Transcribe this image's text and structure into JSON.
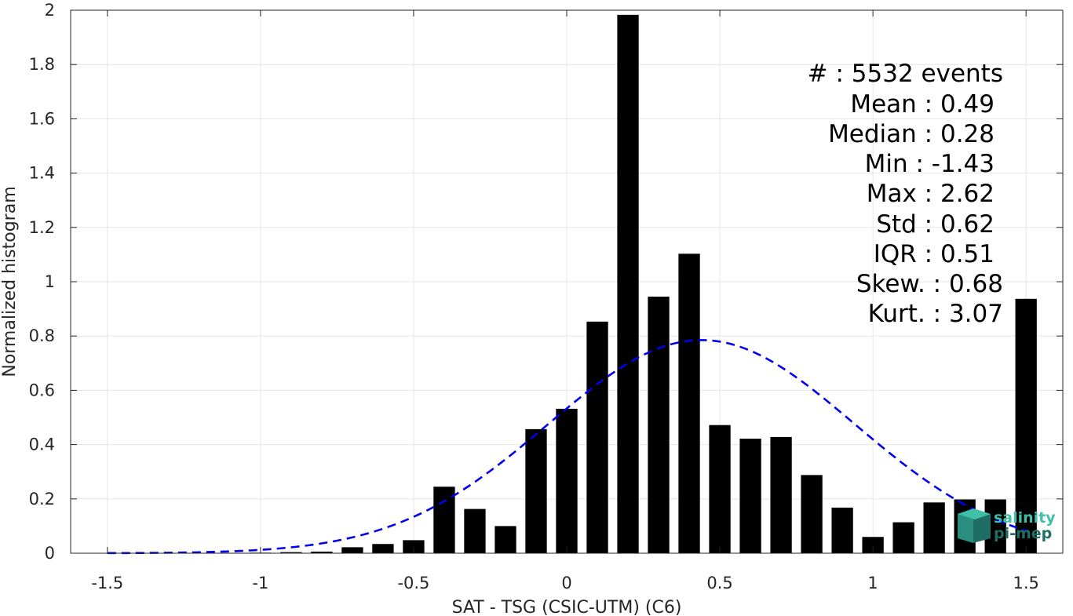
{
  "chart_data": {
    "type": "bar",
    "xlabel": "SAT - TSG (CSIC-UTM) (C6)",
    "ylabel": "Normalized histogram",
    "xlim": [
      -1.62,
      1.62
    ],
    "ylim": [
      0,
      2
    ],
    "x_ticks": [
      -1.5,
      -1,
      -0.5,
      0,
      0.5,
      1,
      1.5
    ],
    "y_ticks": [
      0,
      0.2,
      0.4,
      0.6,
      0.8,
      1,
      1.2,
      1.4,
      1.6,
      1.8,
      2
    ],
    "x_tick_labels": [
      "-1.5",
      "-1",
      "-0.5",
      "0",
      "0.5",
      "1",
      "1.5"
    ],
    "y_tick_labels": [
      "0",
      "0.2",
      "0.4",
      "0.6",
      "0.8",
      "1",
      "1.2",
      "1.4",
      "1.6",
      "1.8",
      "2"
    ],
    "grid": true,
    "bar_color": "#000000",
    "bar_width": 0.07,
    "bars": [
      {
        "x": -1.5,
        "y": 0.0
      },
      {
        "x": -1.4,
        "y": 0.0
      },
      {
        "x": -1.3,
        "y": 0.0
      },
      {
        "x": -1.2,
        "y": 0.0
      },
      {
        "x": -1.1,
        "y": 0.0
      },
      {
        "x": -1.0,
        "y": 0.002
      },
      {
        "x": -0.9,
        "y": 0.004
      },
      {
        "x": -0.8,
        "y": 0.006
      },
      {
        "x": -0.7,
        "y": 0.022
      },
      {
        "x": -0.6,
        "y": 0.034
      },
      {
        "x": -0.5,
        "y": 0.048
      },
      {
        "x": -0.4,
        "y": 0.245
      },
      {
        "x": -0.3,
        "y": 0.163
      },
      {
        "x": -0.2,
        "y": 0.1
      },
      {
        "x": -0.1,
        "y": 0.457
      },
      {
        "x": 0.0,
        "y": 0.532
      },
      {
        "x": 0.1,
        "y": 0.853
      },
      {
        "x": 0.2,
        "y": 1.983
      },
      {
        "x": 0.3,
        "y": 0.945
      },
      {
        "x": 0.4,
        "y": 1.103
      },
      {
        "x": 0.5,
        "y": 0.472
      },
      {
        "x": 0.6,
        "y": 0.422
      },
      {
        "x": 0.7,
        "y": 0.428
      },
      {
        "x": 0.8,
        "y": 0.288
      },
      {
        "x": 0.9,
        "y": 0.168
      },
      {
        "x": 1.0,
        "y": 0.06
      },
      {
        "x": 1.1,
        "y": 0.114
      },
      {
        "x": 1.2,
        "y": 0.187
      },
      {
        "x": 1.3,
        "y": 0.198
      },
      {
        "x": 1.4,
        "y": 0.198
      },
      {
        "x": 1.5,
        "y": 0.937
      }
    ],
    "fit_curve": {
      "type": "gaussian",
      "mean": 0.44,
      "std": 0.5,
      "peak": 0.785,
      "color": "#0000ee",
      "style": "dashed",
      "x_range": [
        -1.5,
        1.5
      ]
    },
    "stats": {
      "count_label": "#  : 5532 events",
      "mean_label": "Mean : 0.49",
      "median_label": "Median : 0.28",
      "min_label": "Min : -1.43",
      "max_label": "Max : 2.62",
      "std_label": "Std : 0.62",
      "iqr_label": "IQR : 0.51",
      "skew_label": "Skew. : 0.68",
      "kurt_label": "Kurt. : 3.07"
    },
    "logo": {
      "line1": "salinity",
      "line2": "pi-mep",
      "color_light": "#3fbfa8",
      "color_dark": "#1f6e66"
    }
  }
}
